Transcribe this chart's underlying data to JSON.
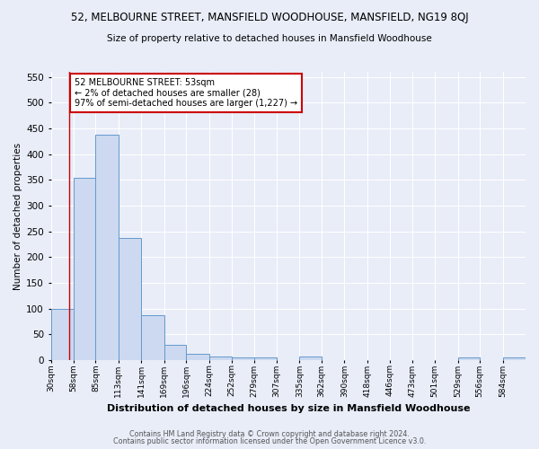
{
  "title_line1": "52, MELBOURNE STREET, MANSFIELD WOODHOUSE, MANSFIELD, NG19 8QJ",
  "title_line2": "Size of property relative to detached houses in Mansfield Woodhouse",
  "xlabel": "Distribution of detached houses by size in Mansfield Woodhouse",
  "ylabel": "Number of detached properties",
  "bin_labels": [
    "30sqm",
    "58sqm",
    "85sqm",
    "113sqm",
    "141sqm",
    "169sqm",
    "196sqm",
    "224sqm",
    "252sqm",
    "279sqm",
    "307sqm",
    "335sqm",
    "362sqm",
    "390sqm",
    "418sqm",
    "446sqm",
    "473sqm",
    "501sqm",
    "529sqm",
    "556sqm",
    "584sqm"
  ],
  "bar_values": [
    100,
    355,
    438,
    238,
    87,
    30,
    12,
    7,
    5,
    5,
    0,
    7,
    0,
    0,
    0,
    0,
    0,
    0,
    6,
    0,
    6
  ],
  "bar_color": "#ccd9f0",
  "bar_edge_color": "#6699cc",
  "property_line_x": 53,
  "bin_edges": [
    30,
    58,
    85,
    113,
    141,
    169,
    196,
    224,
    252,
    279,
    307,
    335,
    362,
    390,
    418,
    446,
    473,
    501,
    529,
    556,
    584,
    612
  ],
  "annotation_text": "52 MELBOURNE STREET: 53sqm\n← 2% of detached houses are smaller (28)\n97% of semi-detached houses are larger (1,227) →",
  "annotation_box_color": "#ffffff",
  "annotation_box_edge_color": "#cc0000",
  "vline_color": "#cc0000",
  "ylim": [
    0,
    560
  ],
  "yticks": [
    0,
    50,
    100,
    150,
    200,
    250,
    300,
    350,
    400,
    450,
    500,
    550
  ],
  "footer_line1": "Contains HM Land Registry data © Crown copyright and database right 2024.",
  "footer_line2": "Contains public sector information licensed under the Open Government Licence v3.0.",
  "background_color": "#e8edf8",
  "plot_bg_color": "#e8edf8",
  "grid_color": "#ffffff"
}
